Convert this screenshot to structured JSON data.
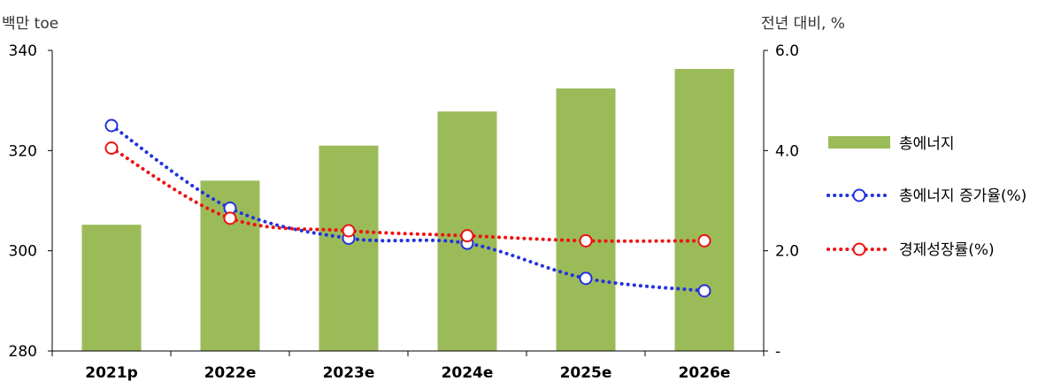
{
  "chart_data": {
    "type": "bar",
    "left_axis_unit": "백만 toe",
    "right_axis_unit": "전년 대비, %",
    "categories": [
      "2021p",
      "2022e",
      "2023e",
      "2024e",
      "2025e",
      "2026e"
    ],
    "left_axis": {
      "min": 280,
      "max": 340,
      "ticks": [
        "280",
        "300",
        "320",
        "340"
      ]
    },
    "right_axis": {
      "min": 0,
      "max": 6,
      "ticks": [
        "-",
        "2.0",
        "4.0",
        "6.0"
      ]
    },
    "series": [
      {
        "name": "총에너지",
        "type": "bar",
        "axis": "left",
        "color": "#9bbb59",
        "values": [
          305.2,
          314.0,
          321.0,
          327.8,
          332.4,
          336.3
        ]
      },
      {
        "name": "총에너지 증가율(%)",
        "type": "line",
        "axis": "right",
        "color": "#2233dd",
        "style": "dotted",
        "marker": "open-circle",
        "values": [
          4.5,
          2.85,
          2.25,
          2.15,
          1.45,
          1.2
        ]
      },
      {
        "name": "경제성장률(%)",
        "type": "line",
        "axis": "right",
        "color": "#ee1111",
        "style": "dotted",
        "marker": "open-circle",
        "values": [
          4.05,
          2.65,
          2.4,
          2.3,
          2.2,
          2.2
        ]
      }
    ],
    "grid": false,
    "legend_position": "right"
  }
}
